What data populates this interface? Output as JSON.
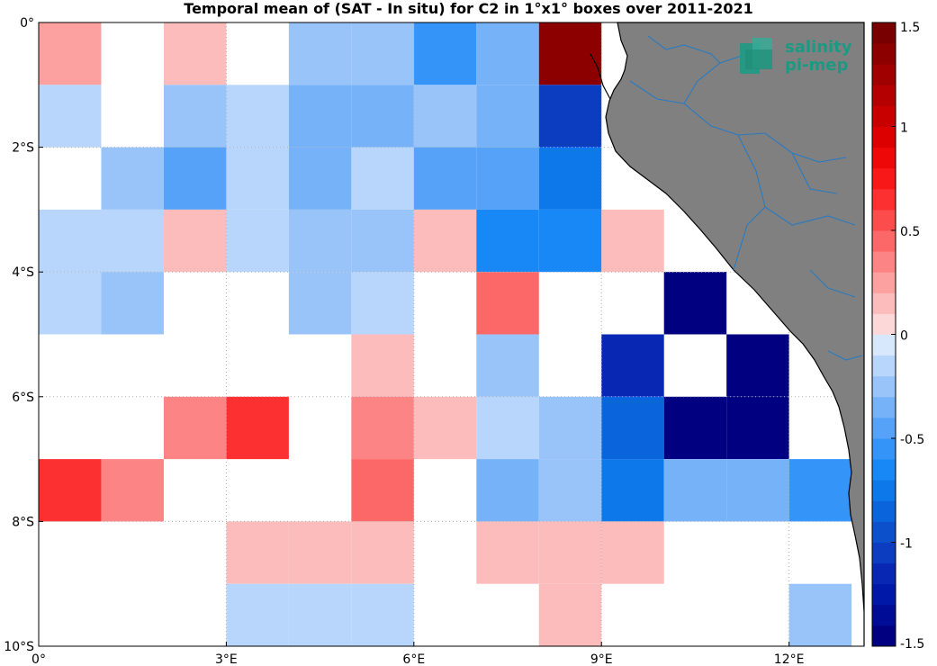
{
  "title": "Temporal mean of (SAT - In situ) for C2 in 1°x1° boxes over 2011-2021",
  "logo": {
    "line1": "salinity",
    "line2": "pi-mep",
    "icon": "salinity-pimep-logo-icon"
  },
  "colors": {
    "land": "#808080",
    "coastline": "#000000",
    "rivers": "#2a7ac0",
    "grid": "#b0b0b0"
  },
  "chart_data": {
    "type": "heatmap",
    "title": "Temporal mean of (SAT - In situ) for C2 in 1°x1° boxes over 2011-2021",
    "xlabel": "",
    "ylabel": "",
    "lon_range": [
      0,
      13.2
    ],
    "lat_range": [
      -10,
      0
    ],
    "lon_ticks": [
      {
        "value": 0,
        "label": "0°"
      },
      {
        "value": 3,
        "label": "3°E"
      },
      {
        "value": 6,
        "label": "6°E"
      },
      {
        "value": 9,
        "label": "9°E"
      },
      {
        "value": 12,
        "label": "12°E"
      }
    ],
    "lat_ticks": [
      {
        "value": 0,
        "label": "0°"
      },
      {
        "value": -2,
        "label": "2°S"
      },
      {
        "value": -4,
        "label": "4°S"
      },
      {
        "value": -6,
        "label": "6°S"
      },
      {
        "value": -8,
        "label": "8°S"
      },
      {
        "value": -10,
        "label": "10°S"
      }
    ],
    "colorbar": {
      "range": [
        -1.5,
        1.5
      ],
      "step": 0.1,
      "ticks": [
        {
          "value": 1.5,
          "label": "1.5"
        },
        {
          "value": 1,
          "label": "1"
        },
        {
          "value": 0.5,
          "label": "0.5"
        },
        {
          "value": 0,
          "label": "0"
        },
        {
          "value": -0.5,
          "label": "-0.5"
        },
        {
          "value": -1,
          "label": "-1"
        },
        {
          "value": -1.5,
          "label": "-1.5"
        }
      ]
    },
    "grid_lines": true,
    "rows_lat_top": [
      0,
      -1,
      -2,
      -3,
      -4,
      -5,
      -6,
      -7,
      -8,
      -9
    ],
    "cols_lon_left": [
      0,
      1,
      2,
      3,
      4,
      5,
      6,
      7,
      8,
      9,
      10,
      11,
      12
    ],
    "values": [
      [
        0.25,
        null,
        0.15,
        null,
        -0.25,
        -0.25,
        -0.55,
        -0.35,
        1.35,
        null,
        null,
        null,
        null
      ],
      [
        -0.15,
        null,
        -0.25,
        -0.15,
        -0.35,
        -0.35,
        -0.25,
        -0.35,
        -1.05,
        null,
        null,
        null,
        null
      ],
      [
        null,
        -0.25,
        -0.45,
        -0.15,
        -0.35,
        -0.15,
        -0.45,
        -0.45,
        -0.75,
        null,
        null,
        null,
        null
      ],
      [
        -0.15,
        -0.15,
        0.15,
        -0.15,
        -0.25,
        -0.25,
        0.15,
        -0.65,
        -0.65,
        0.15,
        null,
        null,
        null
      ],
      [
        -0.15,
        -0.25,
        null,
        null,
        -0.25,
        -0.15,
        null,
        0.45,
        null,
        null,
        -1.55,
        null,
        null
      ],
      [
        null,
        null,
        null,
        null,
        null,
        0.15,
        null,
        -0.25,
        null,
        -1.15,
        null,
        -1.55,
        null
      ],
      [
        null,
        null,
        0.35,
        0.65,
        null,
        0.35,
        0.15,
        -0.15,
        -0.25,
        -0.85,
        -1.45,
        -1.55,
        null
      ],
      [
        0.65,
        0.35,
        null,
        null,
        null,
        0.45,
        null,
        -0.35,
        -0.25,
        -0.75,
        -0.35,
        -0.35,
        -0.55
      ],
      [
        null,
        null,
        null,
        0.15,
        0.15,
        0.15,
        null,
        0.15,
        0.15,
        0.15,
        null,
        null,
        null
      ],
      [
        null,
        null,
        null,
        -0.15,
        -0.15,
        -0.15,
        null,
        null,
        0.15,
        null,
        null,
        null,
        -0.25
      ]
    ]
  }
}
